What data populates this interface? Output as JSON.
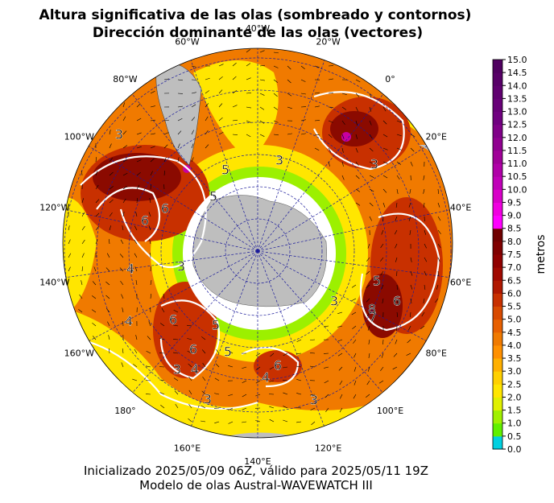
{
  "title": {
    "line1": "Altura significativa de las olas (sombreado y contornos)",
    "line2": "Dirección dominante de las olas (vectores)"
  },
  "longitude_labels": [
    "40°W",
    "20°W",
    "0°",
    "20°E",
    "40°E",
    "60°E",
    "80°E",
    "100°E",
    "120°E",
    "140°E",
    "160°E",
    "180°",
    "160°W",
    "140°W",
    "120°W",
    "100°W",
    "80°W",
    "60°W"
  ],
  "colorbar": {
    "label": "metros",
    "ticks": [
      "0.0",
      "0.5",
      "1.0",
      "1.5",
      "2.0",
      "2.5",
      "3.0",
      "3.5",
      "4.0",
      "4.5",
      "5.0",
      "5.5",
      "6.0",
      "6.5",
      "7.0",
      "7.5",
      "8.0",
      "8.5",
      "9.0",
      "9.5",
      "10.0",
      "10.5",
      "11.0",
      "11.5",
      "12.0",
      "12.5",
      "13.0",
      "13.5",
      "14.0",
      "14.5",
      "15.0"
    ]
  },
  "contour_labels": [
    "3",
    "6",
    "6",
    "5",
    "4",
    "3",
    "6",
    "5",
    "3",
    "4",
    "6",
    "5",
    "4",
    "3",
    "3",
    "7",
    "8",
    "6",
    "3",
    "5",
    "6",
    "4",
    "3",
    "5",
    "3"
  ],
  "footer": {
    "line1": "Inicializado 2025/05/09 06Z, válido para 2025/05/11 19Z",
    "line2": "Modelo de olas Austral-WAVEWATCH III"
  }
}
